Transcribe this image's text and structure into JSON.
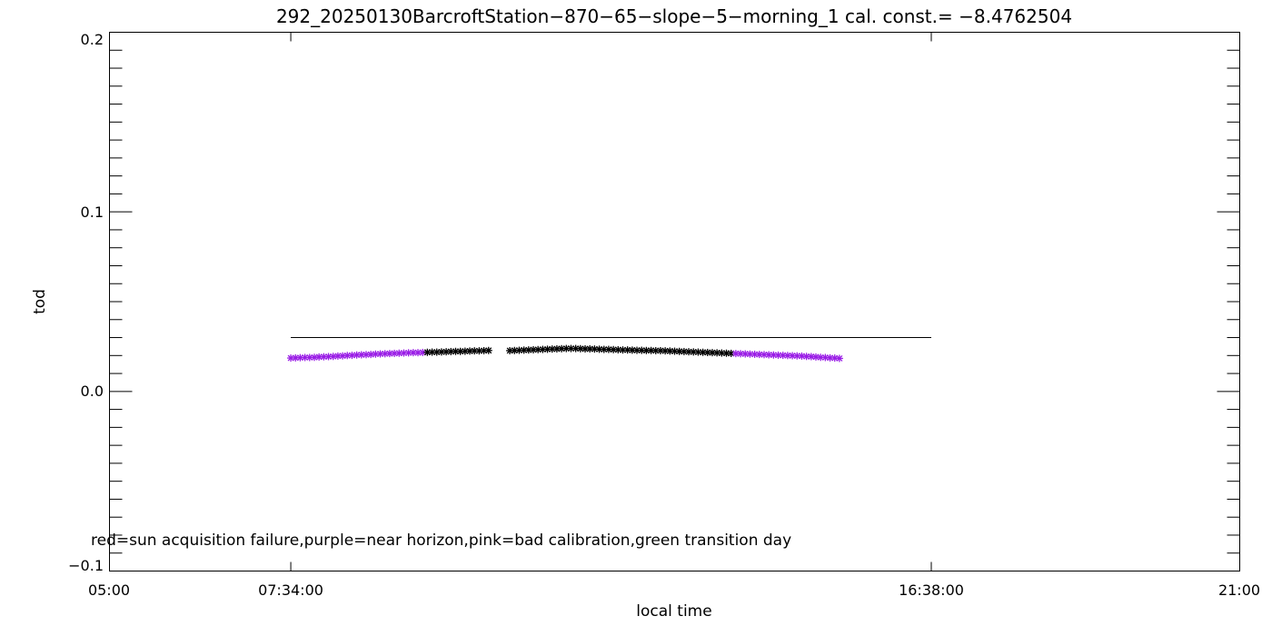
{
  "chart_data": {
    "type": "scatter",
    "title": "292_20250130BarcroftStation−870−65−slope−5−morning_1 cal. const.= −8.4762504",
    "xlabel": "local time",
    "ylabel": "tod",
    "xlim": [
      "05:00",
      "21:00"
    ],
    "ylim": [
      -0.1,
      0.2
    ],
    "x_tick_labels": [
      "05:00",
      "07:34:00",
      "16:38:00",
      "21:00"
    ],
    "y_tick_labels": [
      "−0.1",
      "0.0",
      "0.1",
      "0.2"
    ],
    "y_ticks": [
      -0.1,
      0.0,
      0.1,
      0.2
    ],
    "reference_line": {
      "x_start": "07:34",
      "x_end": "16:38",
      "y": 0.03
    },
    "annotation": "red=sun acquisition failure,purple=near horizon,pink=bad calibration,green transition day",
    "colors": {
      "normal": "#000000",
      "near_horizon": "#9a1ee6"
    },
    "series": [
      {
        "points": [
          [
            "07:34",
            0.0186
          ],
          [
            "07:38",
            0.0187
          ],
          [
            "07:42",
            0.0188
          ],
          [
            "07:46",
            0.0189
          ],
          [
            "07:50",
            0.0189
          ],
          [
            "07:54",
            0.019
          ],
          [
            "07:58",
            0.0192
          ],
          [
            "08:02",
            0.0193
          ],
          [
            "08:06",
            0.0194
          ],
          [
            "08:10",
            0.0195
          ],
          [
            "08:14",
            0.0197
          ],
          [
            "08:18",
            0.0198
          ],
          [
            "08:22",
            0.02
          ],
          [
            "08:26",
            0.0201
          ],
          [
            "08:30",
            0.0203
          ],
          [
            "08:34",
            0.0204
          ],
          [
            "08:38",
            0.0205
          ],
          [
            "08:42",
            0.0206
          ],
          [
            "08:46",
            0.0208
          ],
          [
            "08:50",
            0.0209
          ],
          [
            "08:54",
            0.021
          ],
          [
            "08:58",
            0.0211
          ],
          [
            "09:02",
            0.0212
          ],
          [
            "09:06",
            0.0213
          ],
          [
            "09:10",
            0.0214
          ],
          [
            "09:14",
            0.0215
          ],
          [
            "09:18",
            0.0216
          ],
          [
            "09:22",
            0.0216
          ],
          [
            "09:26",
            0.0217
          ],
          [
            "09:30",
            0.0218
          ],
          [
            "09:34",
            0.0219
          ],
          [
            "09:38",
            0.0219
          ],
          [
            "09:42",
            0.022
          ],
          [
            "09:46",
            0.0221
          ],
          [
            "09:50",
            0.0222
          ],
          [
            "09:54",
            0.0223
          ],
          [
            "09:58",
            0.0223
          ],
          [
            "10:02",
            0.0224
          ],
          [
            "10:06",
            0.0225
          ],
          [
            "10:10",
            0.0226
          ],
          [
            "10:14",
            0.0226
          ],
          [
            "10:18",
            0.0227
          ],
          [
            "10:22",
            0.0228
          ],
          [
            "10:40",
            0.0227
          ],
          [
            "10:44",
            0.0228
          ],
          [
            "10:48",
            0.0229
          ],
          [
            "10:52",
            0.023
          ],
          [
            "10:56",
            0.0231
          ],
          [
            "11:00",
            0.0232
          ],
          [
            "11:04",
            0.0233
          ],
          [
            "11:08",
            0.0234
          ],
          [
            "11:12",
            0.0235
          ],
          [
            "11:16",
            0.0236
          ],
          [
            "11:20",
            0.0237
          ],
          [
            "11:24",
            0.0238
          ],
          [
            "11:28",
            0.0239
          ],
          [
            "11:32",
            0.0239
          ],
          [
            "11:36",
            0.0239
          ],
          [
            "11:40",
            0.0238
          ],
          [
            "11:44",
            0.0237
          ],
          [
            "11:48",
            0.0237
          ],
          [
            "11:52",
            0.0236
          ],
          [
            "11:56",
            0.0235
          ],
          [
            "12:00",
            0.0234
          ],
          [
            "12:04",
            0.0234
          ],
          [
            "12:08",
            0.0233
          ],
          [
            "12:12",
            0.0232
          ],
          [
            "12:16",
            0.0231
          ],
          [
            "12:20",
            0.0231
          ],
          [
            "12:24",
            0.023
          ],
          [
            "12:28",
            0.0229
          ],
          [
            "12:32",
            0.0229
          ],
          [
            "12:36",
            0.0228
          ],
          [
            "12:40",
            0.0228
          ],
          [
            "12:44",
            0.0227
          ],
          [
            "12:48",
            0.0227
          ],
          [
            "12:52",
            0.0226
          ],
          [
            "12:56",
            0.0225
          ],
          [
            "13:00",
            0.0224
          ],
          [
            "13:04",
            0.0223
          ],
          [
            "13:08",
            0.0222
          ],
          [
            "13:12",
            0.0221
          ],
          [
            "13:16",
            0.022
          ],
          [
            "13:20",
            0.0219
          ],
          [
            "13:24",
            0.0218
          ],
          [
            "13:28",
            0.0217
          ],
          [
            "13:32",
            0.0216
          ],
          [
            "13:36",
            0.0215
          ],
          [
            "13:40",
            0.0214
          ],
          [
            "13:44",
            0.0213
          ],
          [
            "13:48",
            0.0212
          ],
          [
            "13:52",
            0.0211
          ],
          [
            "13:56",
            0.021
          ],
          [
            "14:00",
            0.0209
          ],
          [
            "14:04",
            0.0208
          ],
          [
            "14:08",
            0.0207
          ],
          [
            "14:12",
            0.0206
          ],
          [
            "14:16",
            0.0205
          ],
          [
            "14:20",
            0.0204
          ],
          [
            "14:24",
            0.0203
          ],
          [
            "14:28",
            0.0202
          ],
          [
            "14:32",
            0.0201
          ],
          [
            "14:36",
            0.02
          ],
          [
            "14:40",
            0.0199
          ],
          [
            "14:44",
            0.0198
          ],
          [
            "14:48",
            0.0197
          ],
          [
            "14:52",
            0.0195
          ],
          [
            "14:56",
            0.0194
          ],
          [
            "15:00",
            0.0192
          ],
          [
            "15:04",
            0.019
          ],
          [
            "15:08",
            0.0189
          ],
          [
            "15:12",
            0.0187
          ],
          [
            "15:16",
            0.0186
          ],
          [
            "15:20",
            0.0184
          ]
        ],
        "near_horizon_before": "09:30",
        "near_horizon_after": "13:50"
      }
    ]
  }
}
